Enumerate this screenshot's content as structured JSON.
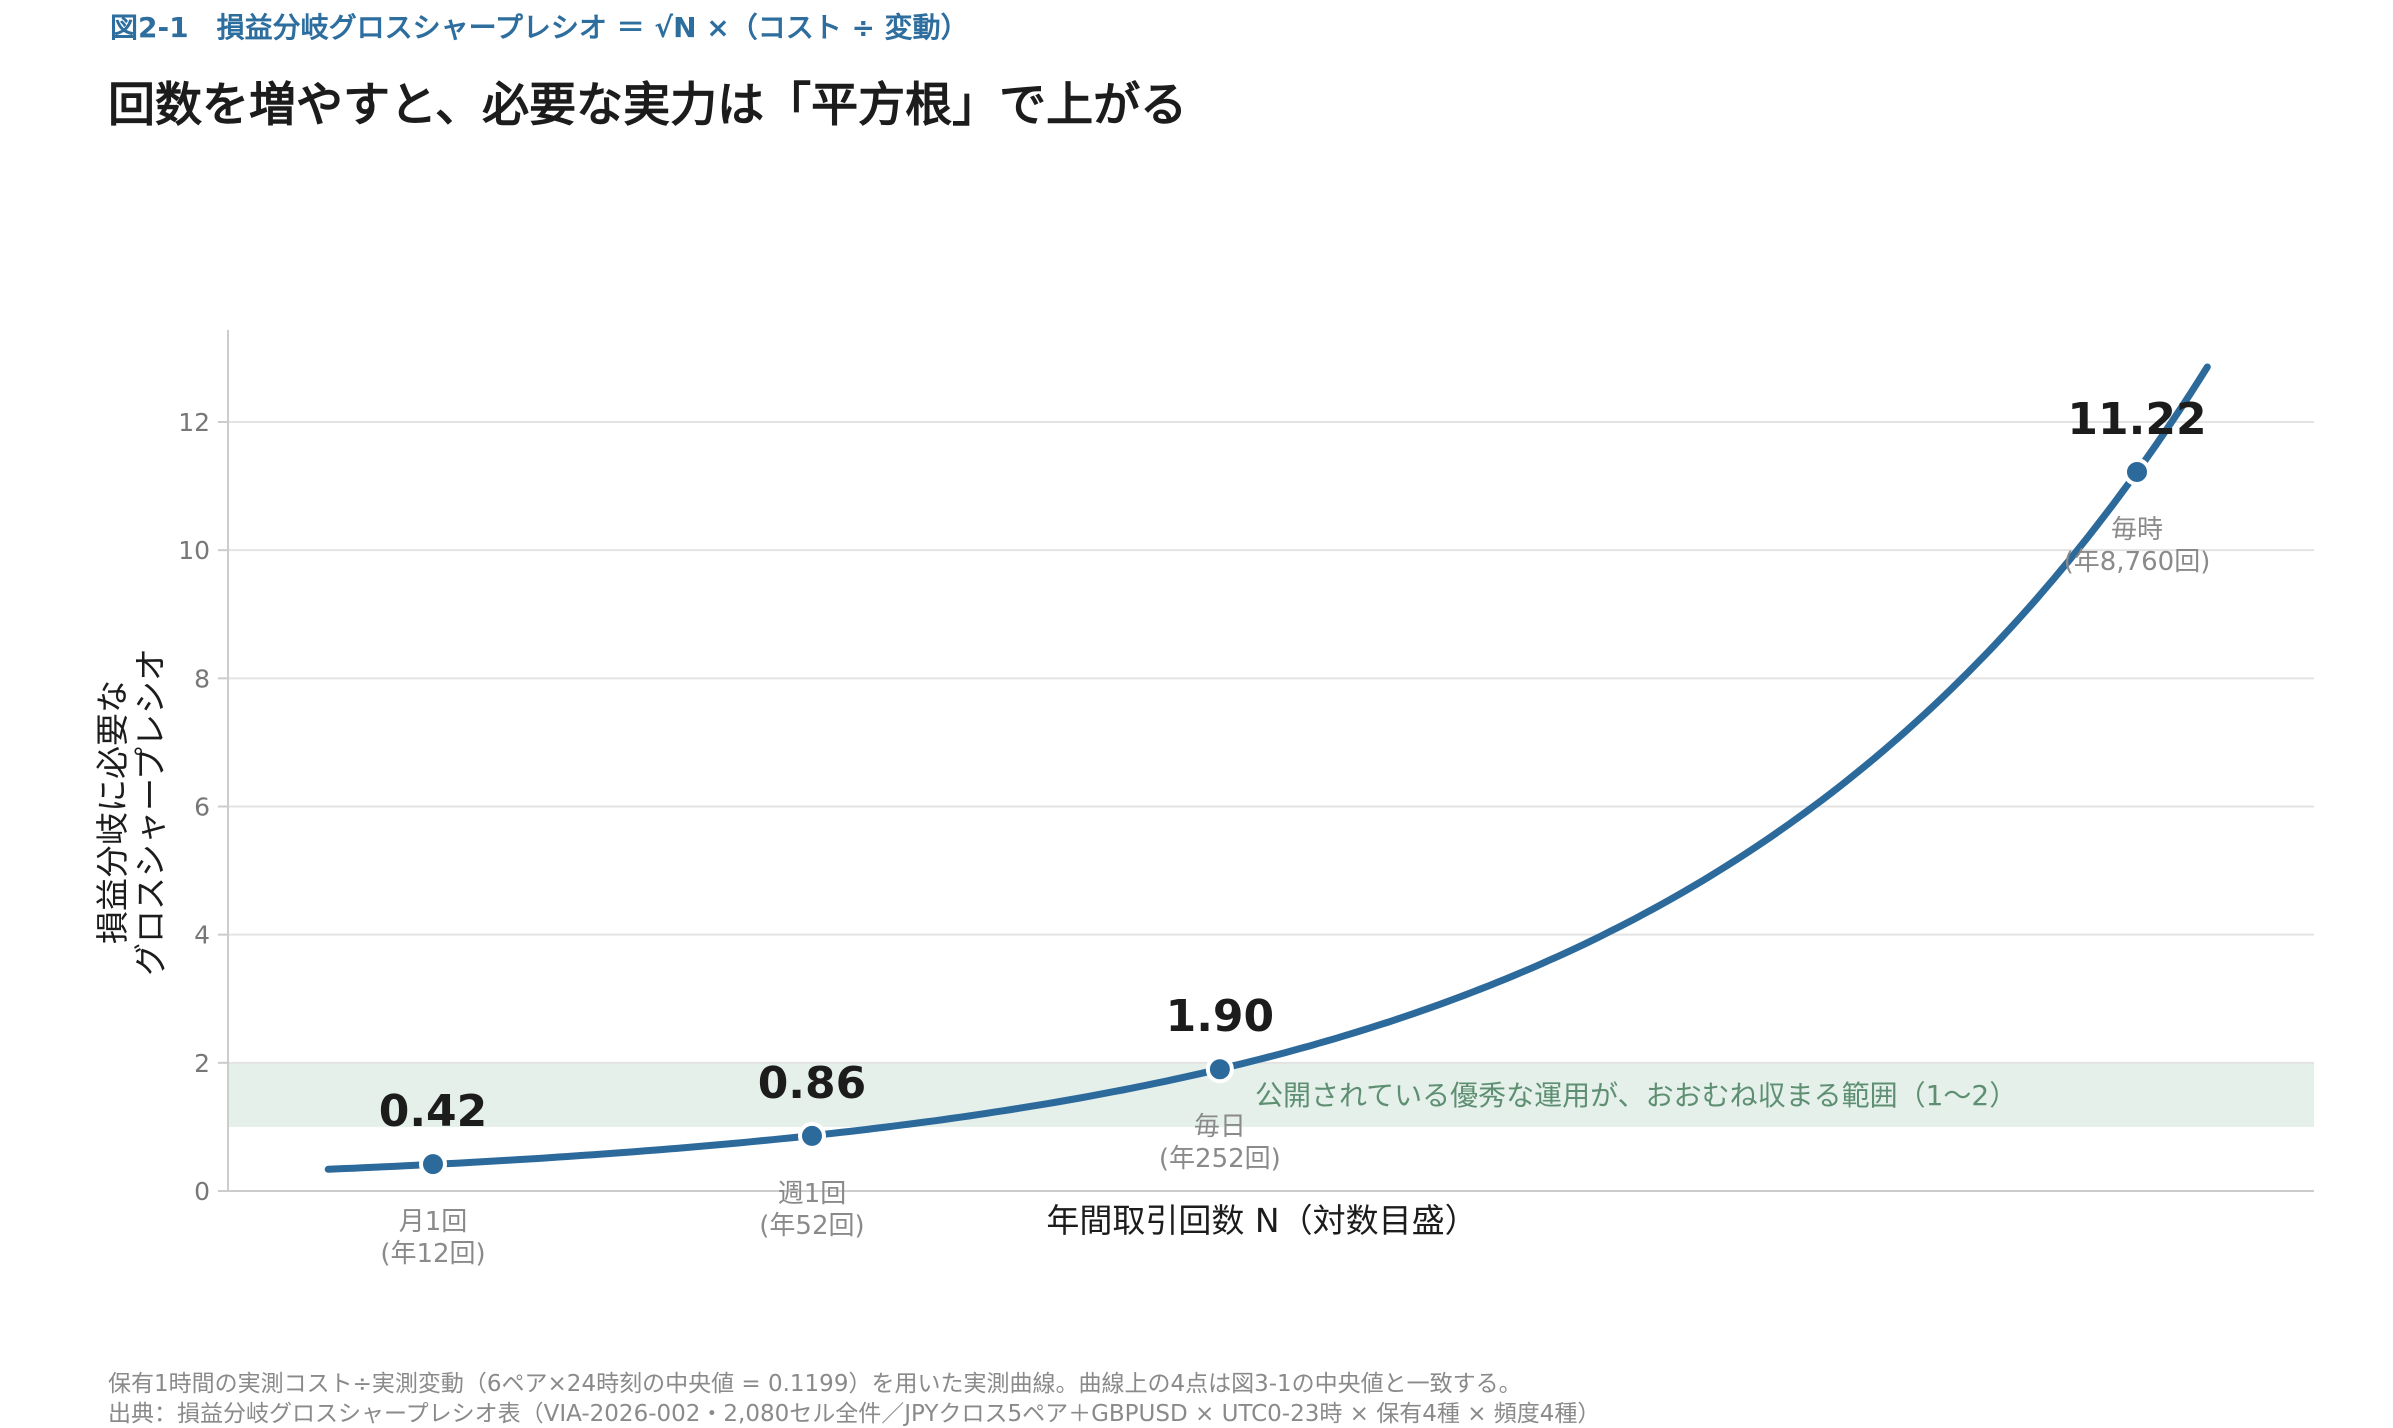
{
  "header": {
    "figure_label": "図2-1　損益分岐グロスシャープレシオ ＝ √N ×（コスト ÷ 変動）",
    "title": "回数を増やすと、必要な実力は「平方根」で上がる"
  },
  "footer": {
    "note": "保有1時間の実測コスト÷実測変動（6ペア×24時刻の中央値 = 0.1199）を用いた実測曲線。曲線上の4点は図3-1の中央値と一致する。",
    "source": "出典：損益分岐グロスシャープレシオ表（VIA-2026-002・2,080セル全件／JPYクロス5ペア＋GBPUSD × UTC0-23時 × 保有4種 × 頻度4種）"
  },
  "chart_data": {
    "type": "line",
    "xlabel": "年間取引回数 N（対数目盛）",
    "ylabel": [
      "損益分岐に必要な",
      "グロスシャープレシオ"
    ],
    "x_scale": "log",
    "x_range": [
      8,
      11500
    ],
    "ylim": [
      0,
      13.5
    ],
    "yticks": [
      0,
      2,
      4,
      6,
      8,
      10,
      12
    ],
    "grid": "horizontal",
    "coefficient": 0.1199,
    "curve_n_range": [
      8,
      11500
    ],
    "band": {
      "from": 1,
      "to": 2,
      "label": "公開されている優秀な運用が、おおむね収まる範囲（1〜2）",
      "color": "#e5f0ea",
      "text_color": "#5e8f72"
    },
    "points": [
      {
        "n": 12,
        "value": 0.42,
        "value_label": "0.42",
        "name": "月1回",
        "sub": "(年12回)"
      },
      {
        "n": 52,
        "value": 0.86,
        "value_label": "0.86",
        "name": "週1回",
        "sub": "(年52回)"
      },
      {
        "n": 252,
        "value": 1.9,
        "value_label": "1.90",
        "name": "毎日",
        "sub": "(年252回)"
      },
      {
        "n": 8760,
        "value": 11.22,
        "value_label": "11.22",
        "name": "毎時",
        "sub": "(年8,760回)"
      }
    ],
    "colors": {
      "line": "#2d6a9c",
      "grid": "#e3e3e3",
      "axis": "#cccccc",
      "tick_text": "#777777",
      "point_label": "#1c1c1c",
      "annotation": "#8a8a8a"
    }
  }
}
